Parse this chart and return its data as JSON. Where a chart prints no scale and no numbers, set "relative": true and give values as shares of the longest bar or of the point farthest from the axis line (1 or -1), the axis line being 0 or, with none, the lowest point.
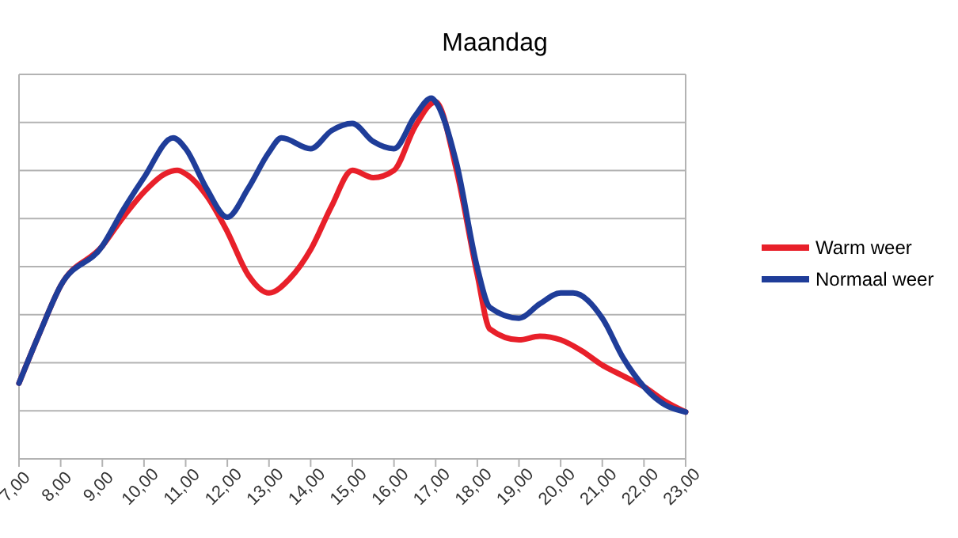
{
  "chart_data": {
    "type": "line",
    "title": "Maandag",
    "relative": true,
    "grid": "y",
    "legend": "right",
    "xlim": [
      7,
      23
    ],
    "xticks": [
      {
        "value": 7,
        "label": "7,00"
      },
      {
        "value": 8,
        "label": "8,00"
      },
      {
        "value": 9,
        "label": "9,00"
      },
      {
        "value": 10,
        "label": "10,00"
      },
      {
        "value": 11,
        "label": "11,00"
      },
      {
        "value": 12,
        "label": "12,00"
      },
      {
        "value": 13,
        "label": "13,00"
      },
      {
        "value": 14,
        "label": "14,00"
      },
      {
        "value": 15,
        "label": "15,00"
      },
      {
        "value": 16,
        "label": "16,00"
      },
      {
        "value": 17,
        "label": "17,00"
      },
      {
        "value": 18,
        "label": "18,00"
      },
      {
        "value": 19,
        "label": "19,00"
      },
      {
        "value": 20,
        "label": "20,00"
      },
      {
        "value": 21,
        "label": "21,00"
      },
      {
        "value": 22,
        "label": "22,00"
      },
      {
        "value": 23,
        "label": "23,00"
      }
    ],
    "series": [
      {
        "name": "Warm weer",
        "color": "#e8202a",
        "x": [
          7,
          7.5,
          8,
          9,
          9.5,
          10,
          10.5,
          10.8,
          11,
          11.5,
          12,
          12.5,
          13,
          13.5,
          14,
          14.5,
          15,
          15.5,
          16,
          16.5,
          17,
          17.5,
          18,
          18.3,
          19,
          19.5,
          20,
          20.5,
          21,
          21.5,
          22,
          22.5,
          23
        ],
        "values": [
          0.21,
          0.35,
          0.48,
          0.59,
          0.67,
          0.74,
          0.79,
          0.8,
          0.79,
          0.73,
          0.63,
          0.51,
          0.46,
          0.5,
          0.58,
          0.7,
          0.8,
          0.78,
          0.8,
          0.92,
          0.99,
          0.8,
          0.51,
          0.36,
          0.33,
          0.34,
          0.33,
          0.3,
          0.26,
          0.23,
          0.2,
          0.16,
          0.13
        ]
      },
      {
        "name": "Normaal weer",
        "color": "#1f3d99",
        "x": [
          7,
          7.5,
          8,
          9,
          9.5,
          10,
          10.7,
          11,
          11.5,
          12,
          12.5,
          13,
          13.3,
          14,
          14.5,
          15,
          15.5,
          16,
          16.5,
          16.9,
          17,
          17.5,
          18,
          18.3,
          19,
          19.5,
          20,
          20.3,
          21,
          21.5,
          22,
          22.5,
          23
        ],
        "values": [
          0.21,
          0.35,
          0.48,
          0.59,
          0.69,
          0.78,
          0.89,
          0.86,
          0.75,
          0.67,
          0.75,
          0.85,
          0.89,
          0.86,
          0.91,
          0.93,
          0.88,
          0.86,
          0.95,
          1,
          0.99,
          0.82,
          0.53,
          0.42,
          0.39,
          0.43,
          0.46,
          0.46,
          0.39,
          0.28,
          0.2,
          0.15,
          0.13
        ]
      }
    ]
  }
}
